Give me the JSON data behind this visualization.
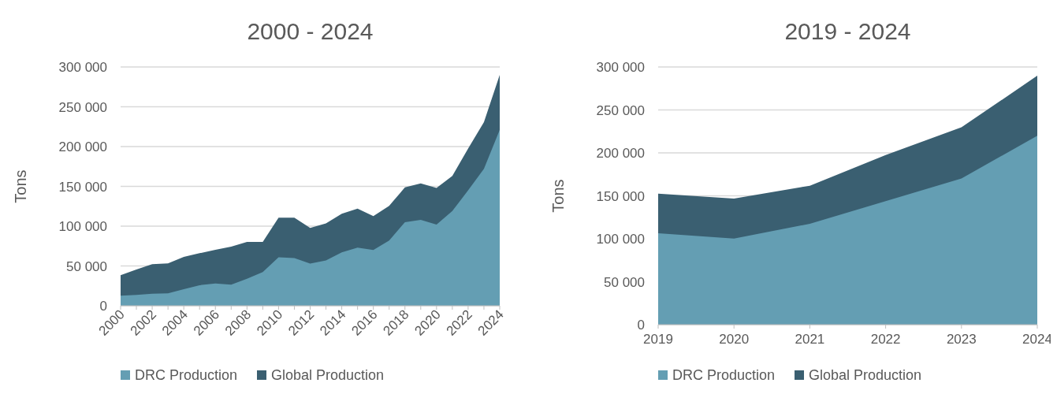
{
  "chart_data": [
    {
      "type": "area",
      "title": "2000 - 2024",
      "ylabel": "Tons",
      "x": [
        2000,
        2001,
        2002,
        2003,
        2004,
        2005,
        2006,
        2007,
        2008,
        2009,
        2010,
        2011,
        2012,
        2013,
        2014,
        2015,
        2016,
        2017,
        2018,
        2019,
        2020,
        2021,
        2022,
        2023,
        2024
      ],
      "series": [
        {
          "name": "DRC Production",
          "color": "#649eb3",
          "values": [
            12600,
            13500,
            15200,
            15500,
            20800,
            25800,
            28000,
            26400,
            34000,
            42300,
            61000,
            60000,
            53000,
            57000,
            67000,
            73000,
            70000,
            82000,
            105000,
            108000,
            102000,
            119000,
            145000,
            172000,
            221000
          ]
        },
        {
          "name": "Global Production",
          "color": "#3a5f71",
          "values": [
            38300,
            45600,
            52200,
            53200,
            61500,
            66000,
            70400,
            74300,
            80300,
            80300,
            110700,
            110700,
            97800,
            103400,
            115700,
            122000,
            112700,
            125600,
            148700,
            153600,
            148000,
            163000,
            197600,
            230600,
            290000
          ]
        }
      ],
      "xlim": [
        2000,
        2024
      ],
      "xticks": [
        2000,
        {
          "value": 2001,
          "label": null
        },
        2002,
        {
          "value": 2003,
          "label": null
        },
        2004,
        {
          "value": 2005,
          "label": null
        },
        2006,
        {
          "value": 2007,
          "label": null
        },
        2008,
        {
          "value": 2009,
          "label": null
        },
        2010,
        {
          "value": 2011,
          "label": null
        },
        2012,
        {
          "value": 2013,
          "label": null
        },
        2014,
        {
          "value": 2015,
          "label": null
        },
        2016,
        {
          "value": 2017,
          "label": null
        },
        2018,
        {
          "value": 2019,
          "label": null
        },
        2020,
        {
          "value": 2021,
          "label": null
        },
        2022,
        {
          "value": 2023,
          "label": null
        },
        2024
      ],
      "ylim": [
        0,
        300000
      ],
      "yticks": [
        0,
        {
          "value": 50000,
          "label": "50 000"
        },
        {
          "value": 100000,
          "label": "100 000"
        },
        {
          "value": 150000,
          "label": "150 000"
        },
        {
          "value": 200000,
          "label": "200 000"
        },
        {
          "value": 250000,
          "label": "250 000"
        },
        {
          "value": 300000,
          "label": "300 000"
        }
      ],
      "grid": "y",
      "legend": "bottom"
    },
    {
      "type": "area",
      "title": "2019 - 2024",
      "ylabel": "Tons",
      "x": [
        2019,
        2020,
        2021,
        2022,
        2023,
        2024
      ],
      "series": [
        {
          "name": "DRC Production",
          "color": "#649eb3",
          "values": [
            106500,
            100300,
            117400,
            143800,
            170200,
            219900
          ]
        },
        {
          "name": "Global Production",
          "color": "#3a5f71",
          "values": [
            152500,
            146900,
            161800,
            197500,
            229800,
            289800
          ]
        }
      ],
      "xlim": [
        2019,
        2024
      ],
      "xticks": [
        2019,
        2020,
        2021,
        2022,
        2023,
        2024
      ],
      "ylim": [
        0,
        300000
      ],
      "yticks": [
        0,
        {
          "value": 50000,
          "label": "50 000"
        },
        {
          "value": 100000,
          "label": "100 000"
        },
        {
          "value": 150000,
          "label": "150 000"
        },
        {
          "value": 200000,
          "label": "200 000"
        },
        {
          "value": 250000,
          "label": "250 000"
        },
        {
          "value": 300000,
          "label": "300 000"
        }
      ],
      "grid": "y",
      "legend": "bottom"
    }
  ]
}
